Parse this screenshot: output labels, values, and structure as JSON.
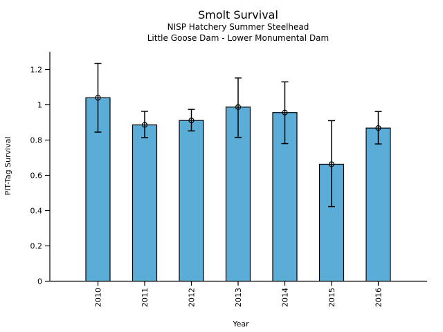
{
  "figure": {
    "background": "#ffffff",
    "text_color": "#000000"
  },
  "chart_data": {
    "type": "bar",
    "title": "Smolt Survival",
    "subtitle": [
      "NISP Hatchery Summer Steelhead",
      "Little Goose Dam - Lower Monumental Dam"
    ],
    "xlabel": "Year",
    "ylabel": "PIT-Tag Survival",
    "categories": [
      "2010",
      "2011",
      "2012",
      "2013",
      "2014",
      "2015",
      "2016"
    ],
    "values": [
      1.04,
      0.886,
      0.911,
      0.987,
      0.956,
      0.663,
      0.868
    ],
    "error_low": [
      0.845,
      0.814,
      0.852,
      0.815,
      0.78,
      0.423,
      0.778
    ],
    "error_high": [
      1.235,
      0.963,
      0.974,
      1.152,
      1.13,
      0.91,
      0.962
    ],
    "yticks": [
      0,
      0.2,
      0.4,
      0.6,
      0.8,
      1,
      1.2
    ],
    "ytick_labels": [
      "0",
      "0.2",
      "0.4",
      "0.6",
      "0.8",
      "1",
      "1.2"
    ],
    "ylim": [
      0,
      1.3
    ],
    "x_tick_rotation": 90,
    "grid": false,
    "legend": false,
    "bar_color": "#5BACD6",
    "bar_edge_color": "#000000",
    "errorbar_color": "#000000",
    "marker": "open-circle"
  }
}
